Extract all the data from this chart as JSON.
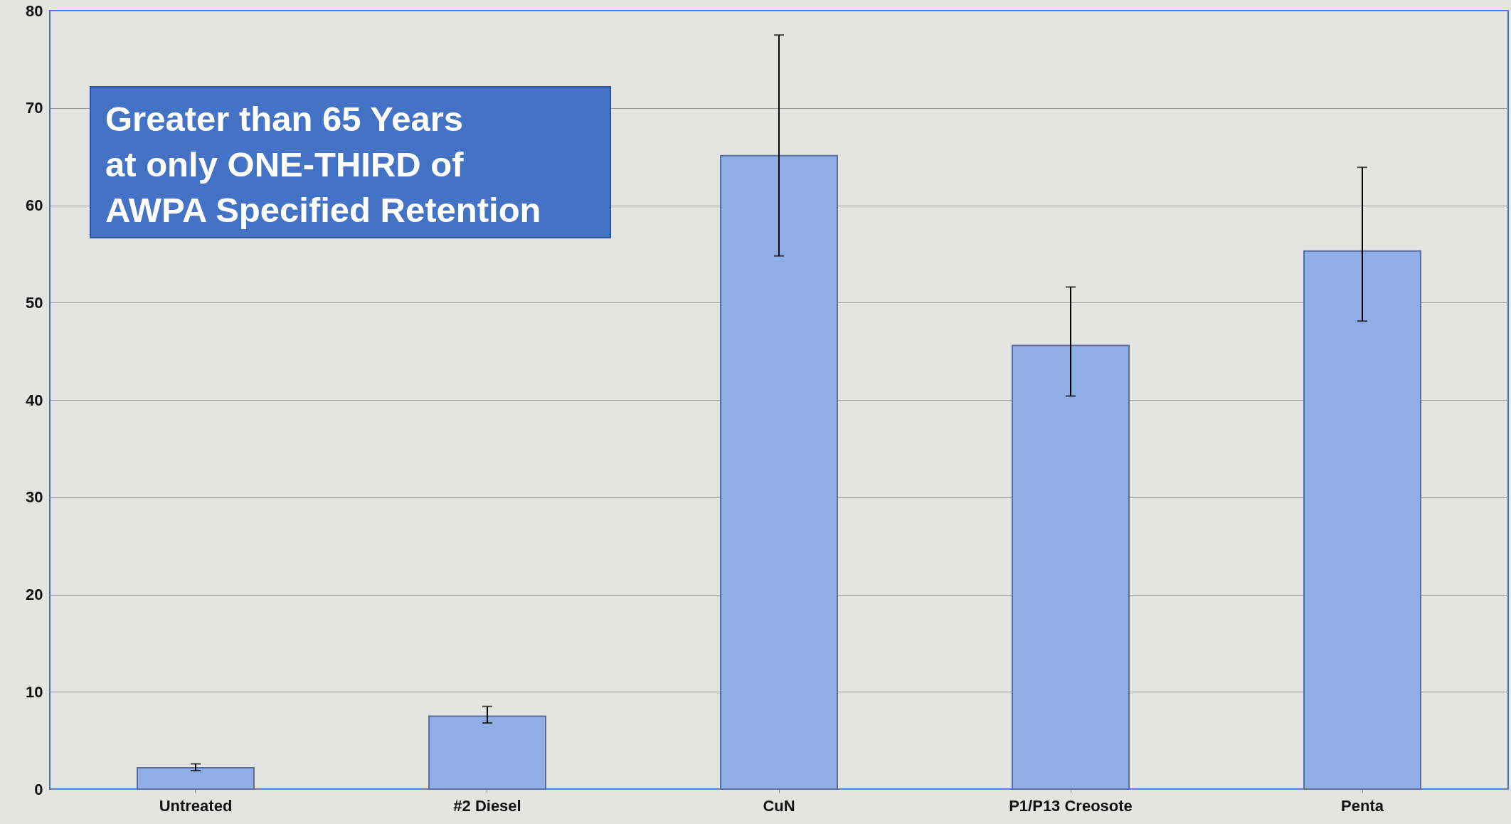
{
  "chart_data": {
    "type": "bar",
    "categories": [
      "Untreated",
      "#2 Diesel",
      "CuN",
      "P1/P13 Creosote",
      "Penta"
    ],
    "values": [
      2.2,
      7.5,
      65.1,
      45.6,
      55.3
    ],
    "errors": [
      [
        1.9,
        2.6
      ],
      [
        6.8,
        8.5
      ],
      [
        54.8,
        77.5
      ],
      [
        40.4,
        51.6
      ],
      [
        48.1,
        63.9
      ]
    ],
    "color": "#90aee6",
    "ylim": [
      0,
      80
    ],
    "yticks": [
      0,
      10,
      20,
      30,
      40,
      50,
      60,
      70,
      80
    ],
    "grid": "y",
    "annotations": [
      "Greater than 65 Years\nat only ONE-THIRD of\nAWPA Specified Retention"
    ]
  }
}
